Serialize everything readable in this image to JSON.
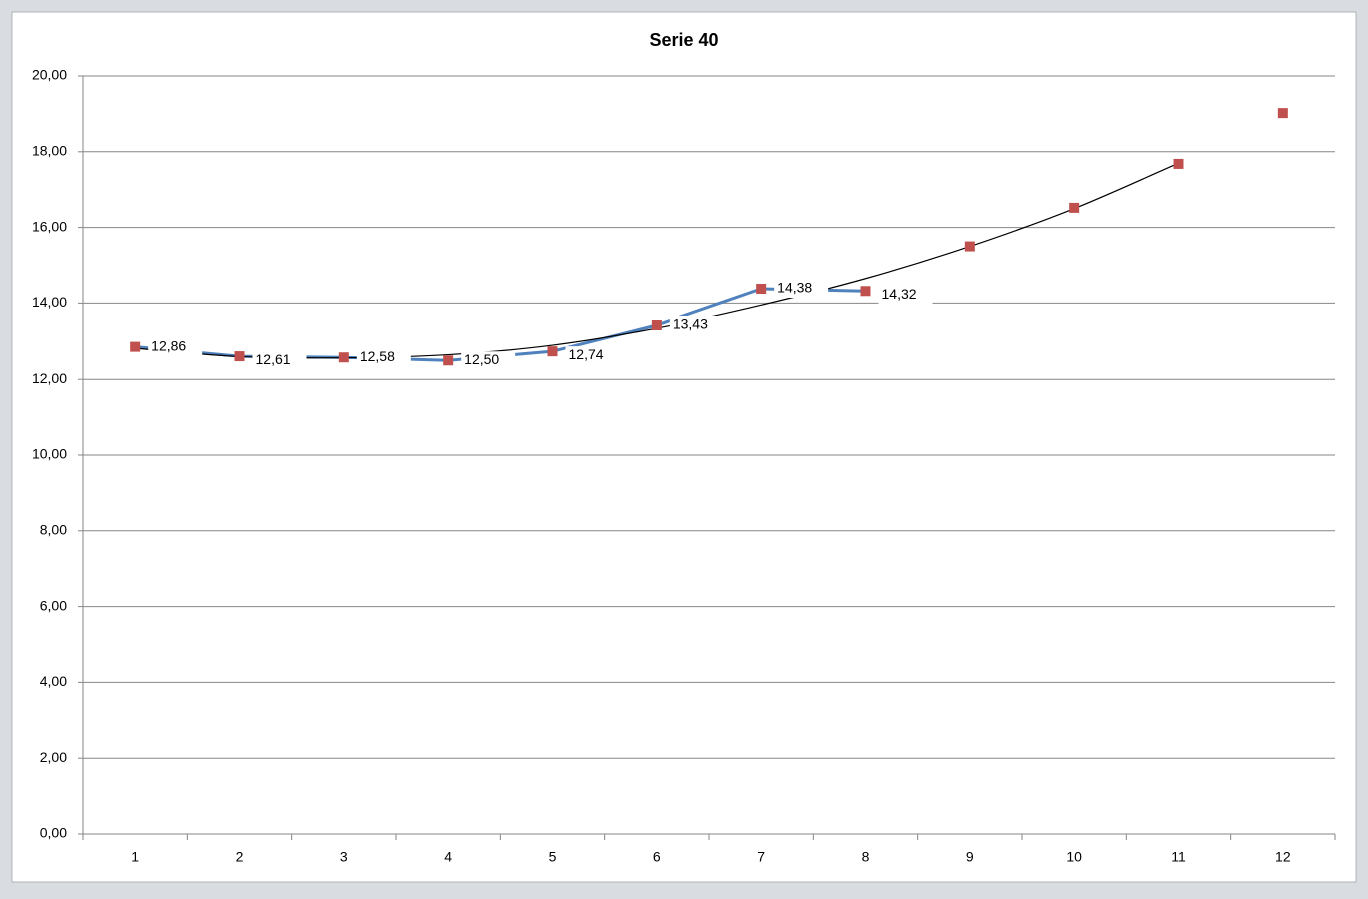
{
  "chart_data": {
    "type": "line",
    "title": "Serie 40",
    "categories": [
      "1",
      "2",
      "3",
      "4",
      "5",
      "6",
      "7",
      "8",
      "9",
      "10",
      "11",
      "12"
    ],
    "series": [
      {
        "color": "#4f81bd",
        "style": "line",
        "values": [
          12.86,
          12.61,
          12.58,
          12.5,
          12.74,
          13.43,
          14.38,
          14.32,
          null,
          null,
          null,
          null
        ],
        "value_labels": [
          "12,86",
          "12,61",
          "12,58",
          "12,50",
          "12,74",
          "13,43",
          "14,38",
          "14,32",
          null,
          null,
          null,
          null
        ]
      },
      {
        "color": "#c0504d",
        "style": "markers",
        "values": [
          12.86,
          12.61,
          12.58,
          12.5,
          12.74,
          13.43,
          14.38,
          14.32,
          15.5,
          16.52,
          17.68,
          19.02
        ]
      },
      {
        "color": "#000000",
        "style": "smooth",
        "values": [
          12.82,
          12.6,
          12.57,
          12.65,
          12.9,
          13.35,
          13.95,
          14.65,
          15.5,
          16.5,
          17.7,
          null
        ]
      }
    ],
    "ylim": [
      0,
      20
    ],
    "yticks": [
      {
        "value": 0,
        "label": "0,00"
      },
      {
        "value": 2,
        "label": "2,00"
      },
      {
        "value": 4,
        "label": "4,00"
      },
      {
        "value": 6,
        "label": "6,00"
      },
      {
        "value": 8,
        "label": "8,00"
      },
      {
        "value": 10,
        "label": "10,00"
      },
      {
        "value": 12,
        "label": "12,00"
      },
      {
        "value": 14,
        "label": "14,00"
      },
      {
        "value": 16,
        "label": "16,00"
      },
      {
        "value": 18,
        "label": "18,00"
      },
      {
        "value": 20,
        "label": "20,00"
      }
    ],
    "grid": true
  }
}
